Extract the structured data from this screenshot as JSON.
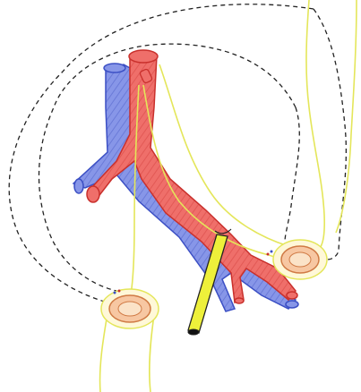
{
  "figure": {
    "description_visible_text": "",
    "colors": {
      "background": "#ffffff",
      "artery_fill": "#ef6f6a",
      "artery_stroke": "#c9302c",
      "vein_fill": "#7f8fe6",
      "vein_stroke": "#3b4fc4",
      "nerve_stroke": "#e4e65a",
      "tube_fill": "#eef03a",
      "tube_stroke": "#222222",
      "dashed_outline": "#222222",
      "lumen_fill": "#f7d7b2",
      "ring_fill": "#f7c7a2"
    },
    "icons": [
      "artery-trunk",
      "vein-trunk",
      "yellow-nerve-lines",
      "dashed-bowel-outline",
      "stoma-ring-right",
      "stoma-ring-left",
      "drain-tube"
    ]
  }
}
